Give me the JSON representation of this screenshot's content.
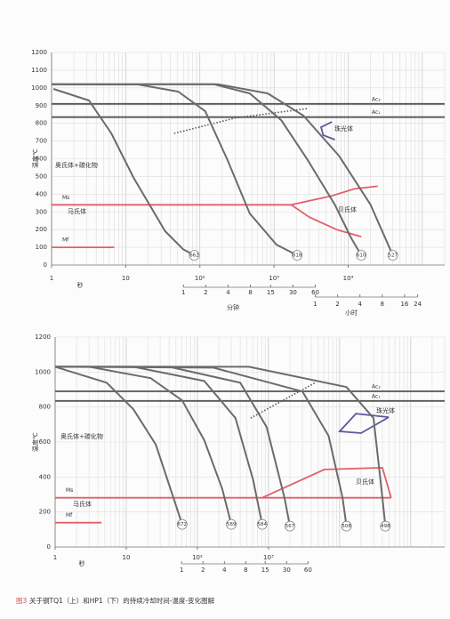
{
  "chart_data": [
    {
      "type": "line",
      "x_log": true,
      "grid": true,
      "y_label": "温度℃",
      "x_label": "秒",
      "x2_label": "分钟",
      "x3_label": "小时",
      "xlim": [
        1,
        200000
      ],
      "ylim": [
        0,
        1200
      ],
      "xticks": [
        1,
        10,
        {
          "value": 100,
          "label": "10²"
        },
        {
          "value": 1000,
          "label": "10³"
        },
        {
          "value": 10000,
          "label": "10⁴"
        }
      ],
      "yticks": [
        0,
        100,
        200,
        300,
        400,
        500,
        600,
        700,
        800,
        900,
        1000,
        1100,
        1200
      ],
      "x2ticks": [
        {
          "value": 60,
          "label": "1"
        },
        {
          "value": 120,
          "label": "2"
        },
        {
          "value": 240,
          "label": "4"
        },
        {
          "value": 480,
          "label": "8"
        },
        {
          "value": 900,
          "label": "15"
        },
        {
          "value": 1800,
          "label": "30"
        },
        {
          "value": 3600,
          "label": "60"
        }
      ],
      "x3ticks": [
        {
          "value": 3600,
          "label": "1"
        },
        {
          "value": 7200,
          "label": "2"
        },
        {
          "value": 14400,
          "label": "4"
        },
        {
          "value": 28800,
          "label": "8"
        },
        {
          "value": 57600,
          "label": "16"
        },
        {
          "value": 86400,
          "label": "24"
        }
      ],
      "series": [
        {
          "name": "662",
          "color": "#6b6b6b",
          "x": [
            1.06,
            3.2,
            6.4,
            12.8,
            34,
            59,
            84
          ],
          "values": [
            994,
            929,
            743,
            492,
            191,
            90,
            55
          ]
        },
        {
          "name": "618",
          "color": "#6b6b6b",
          "x": [
            1,
            14.7,
            51,
            118,
            236,
            470,
            1080,
            2050
          ],
          "values": [
            1020,
            1019,
            979,
            868,
            592,
            291,
            115,
            55
          ]
        },
        {
          "name": "610",
          "color": "#6b6b6b",
          "x": [
            1,
            155,
            470,
            1250,
            2850,
            6600,
            11000,
            15000
          ],
          "values": [
            1020,
            1020,
            969,
            818,
            592,
            341,
            151,
            55
          ]
        },
        {
          "name": "527",
          "color": "#6b6b6b",
          "x": [
            1,
            178,
            820,
            2500,
            7500,
            20000,
            40000
          ],
          "values": [
            1020,
            1020,
            969,
            843,
            617,
            341,
            55
          ]
        }
      ],
      "phase_lines": [
        {
          "name": "Ac₃",
          "color": "#555555",
          "x": [
            1,
            200000
          ],
          "values": [
            910,
            910
          ]
        },
        {
          "name": "Ac₁",
          "color": "#555555",
          "x": [
            1,
            200000
          ],
          "values": [
            835,
            835
          ]
        },
        {
          "name": "Ms",
          "color": "#e0606a",
          "x": [
            1,
            1700
          ],
          "values": [
            340,
            340
          ]
        },
        {
          "name": "Mf",
          "color": "#e0606a",
          "x": [
            1,
            7
          ],
          "values": [
            100,
            100
          ]
        },
        {
          "color": "#e0606a",
          "x": [
            1700,
            6000,
            12000,
            25000
          ],
          "values": [
            340,
            390,
            430,
            445
          ]
        },
        {
          "color": "#e0606a",
          "x": [
            1700,
            3000,
            7000,
            15000
          ],
          "values": [
            340,
            270,
            200,
            160
          ]
        },
        {
          "color": "#5a5a9a",
          "x": [
            6050,
            4300,
            4600,
            6600
          ],
          "values": [
            808,
            778,
            733,
            708
          ]
        },
        {
          "color": "#555555",
          "dashed": true,
          "x": [
            45,
            300,
            2900
          ],
          "values": [
            743,
            830,
            884
          ]
        }
      ],
      "annotations": [
        "奥氏体+碳化物",
        "马氏体",
        "贝氏体",
        "珠光体"
      ]
    },
    {
      "type": "line",
      "x_log": true,
      "grid": true,
      "y_label": "温度℃",
      "x_label": "秒",
      "xlim": [
        1,
        300000
      ],
      "ylim": [
        0,
        1200
      ],
      "xticks": [
        1,
        10,
        {
          "value": 100,
          "label": "10²"
        },
        {
          "value": 1000,
          "label": "10³"
        }
      ],
      "yticks": [
        0,
        200,
        400,
        600,
        800,
        1000,
        1200
      ],
      "x2ticks": [
        {
          "value": 60,
          "label": "1"
        },
        {
          "value": 120,
          "label": "2"
        },
        {
          "value": 240,
          "label": "4"
        },
        {
          "value": 480,
          "label": "8"
        },
        {
          "value": 900,
          "label": "15"
        },
        {
          "value": 1800,
          "label": "30"
        },
        {
          "value": 3600,
          "label": "60"
        }
      ],
      "series": [
        {
          "name": "672",
          "color": "#6b6b6b",
          "x": [
            1,
            5.3,
            12.6,
            26,
            46,
            61
          ],
          "values": [
            1030,
            939,
            787,
            585,
            281,
            129
          ]
        },
        {
          "name": "589",
          "color": "#6b6b6b",
          "x": [
            1,
            3,
            22,
            61,
            125,
            224,
            300
          ],
          "values": [
            1030,
            1030,
            965,
            838,
            610,
            332,
            129
          ]
        },
        {
          "name": "584",
          "color": "#6b6b6b",
          "x": [
            1,
            12.6,
            125,
            344,
            610,
            815
          ],
          "values": [
            1030,
            1030,
            949,
            737,
            382,
            129
          ]
        },
        {
          "name": "567",
          "color": "#6b6b6b",
          "x": [
            1,
            40,
            400,
            940,
            1680,
            2000
          ],
          "values": [
            1030,
            1030,
            939,
            686,
            281,
            119
          ]
        },
        {
          "name": "508",
          "color": "#6b6b6b",
          "x": [
            1,
            168,
            3000,
            7000,
            11000,
            12500
          ],
          "values": [
            1030,
            1025,
            889,
            635,
            281,
            119
          ]
        },
        {
          "name": "498",
          "color": "#6b6b6b",
          "x": [
            1,
            530,
            12500,
            30000,
            40000,
            44000
          ],
          "values": [
            1030,
            1030,
            914,
            737,
            281,
            119
          ]
        }
      ],
      "phase_lines": [
        {
          "name": "Ac₃",
          "color": "#555555",
          "x": [
            1,
            300000
          ],
          "values": [
            890,
            890
          ]
        },
        {
          "name": "Ac₁",
          "color": "#555555",
          "x": [
            1,
            300000
          ],
          "values": [
            835,
            835
          ]
        },
        {
          "name": "Ms",
          "color": "#e0606a",
          "x": [
            1,
            53000
          ],
          "values": [
            281,
            281
          ]
        },
        {
          "name": "Mf",
          "color": "#e0606a",
          "x": [
            1,
            4.5
          ],
          "values": [
            139,
            139
          ]
        },
        {
          "color": "#e0606a",
          "x": [
            815,
            6100,
            40000,
            53000
          ],
          "values": [
            281,
            443,
            453,
            281
          ]
        },
        {
          "color": "#5a5a9a",
          "x": [
            49000,
            17000,
            10000,
            20000,
            49000
          ],
          "values": [
            742,
            762,
            661,
            651,
            742
          ]
        },
        {
          "color": "#555555",
          "dashed": true,
          "x": [
            560,
            4600
          ],
          "values": [
            737,
            940
          ]
        }
      ],
      "annotations": [
        "奥氏体+碳化物",
        "马氏体",
        "贝氏体",
        "珠光体"
      ]
    }
  ],
  "figure_label": "图3",
  "caption": "关于钢TQ1（上）和HP1（下）的持续冷却时间-温度-变化图解"
}
